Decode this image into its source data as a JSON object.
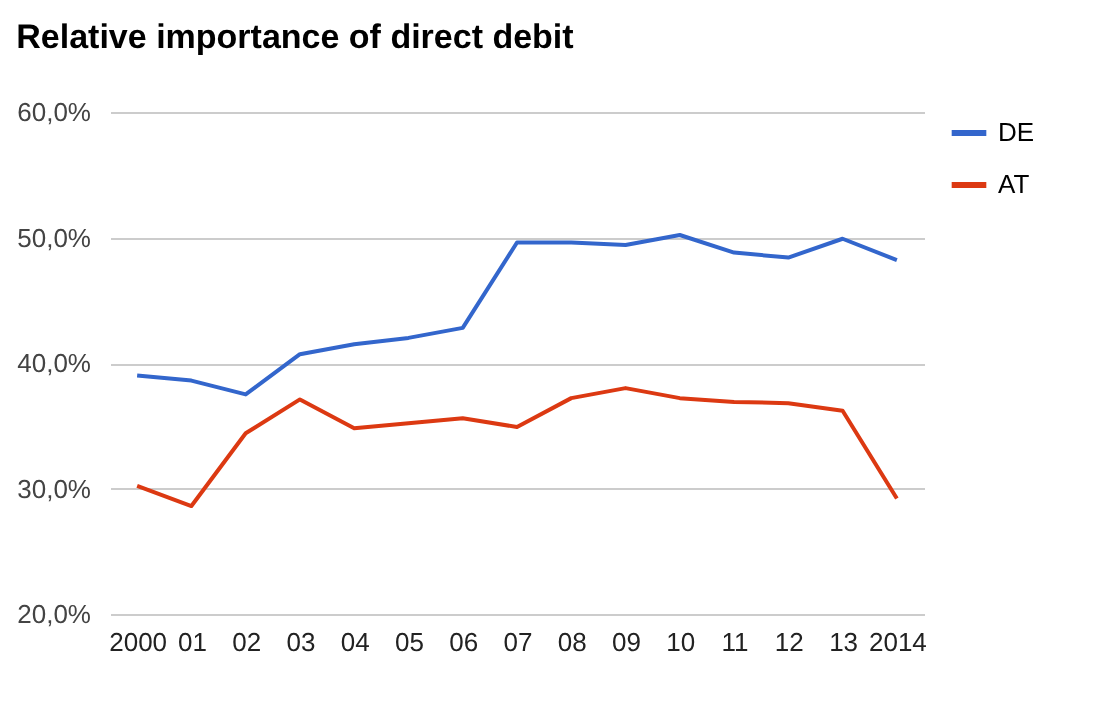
{
  "chart_data": {
    "type": "line",
    "title": "Relative importance of direct debit",
    "categories": [
      "2000",
      "01",
      "02",
      "03",
      "04",
      "05",
      "06",
      "07",
      "08",
      "09",
      "10",
      "11",
      "12",
      "13",
      "2014"
    ],
    "series": [
      {
        "name": "DE",
        "color": "#3366cc",
        "values": [
          39.0,
          38.6,
          37.5,
          40.7,
          41.5,
          42.0,
          42.8,
          49.6,
          49.6,
          49.4,
          50.2,
          48.8,
          48.4,
          49.9,
          48.2
        ]
      },
      {
        "name": "AT",
        "color": "#dc3912",
        "values": [
          30.2,
          28.6,
          34.4,
          37.1,
          34.8,
          35.2,
          35.6,
          34.9,
          37.2,
          38.0,
          37.2,
          36.9,
          36.8,
          36.2,
          29.2
        ]
      }
    ],
    "ylim": [
      20,
      60
    ],
    "yticks": [
      {
        "value": 20,
        "label": "20,0%"
      },
      {
        "value": 30,
        "label": "30,0%"
      },
      {
        "value": 40,
        "label": "40,0%"
      },
      {
        "value": 50,
        "label": "50,0%"
      },
      {
        "value": 60,
        "label": "60,0%"
      }
    ],
    "grid": "y",
    "legend": "top right",
    "marker": "none",
    "line_style": "solid"
  }
}
